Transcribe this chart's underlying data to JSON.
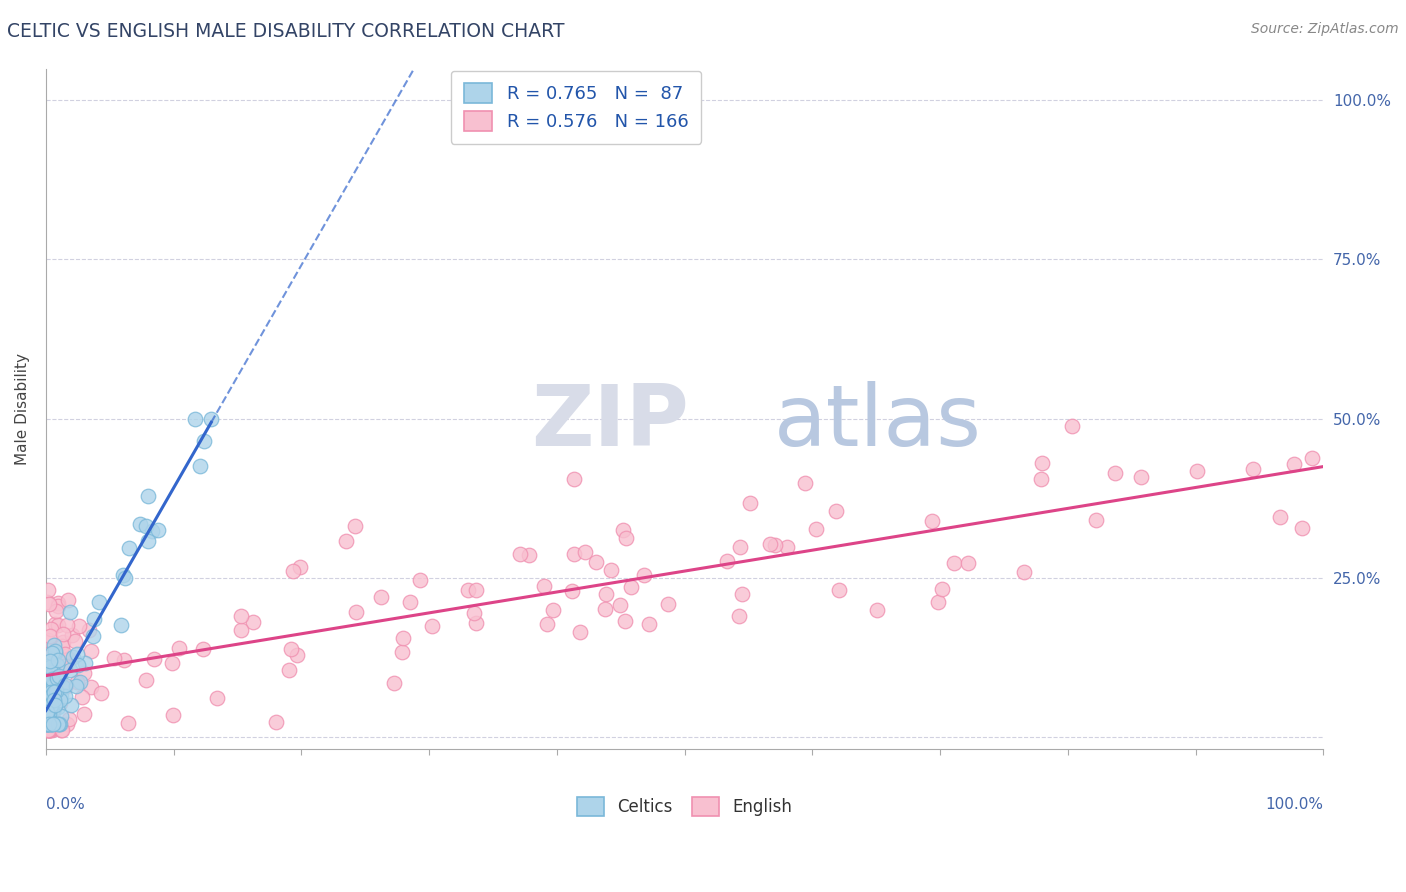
{
  "title": "CELTIC VS ENGLISH MALE DISABILITY CORRELATION CHART",
  "source": "Source: ZipAtlas.com",
  "ylabel": "Male Disability",
  "celtics_R": 0.765,
  "celtics_N": 87,
  "english_R": 0.576,
  "english_N": 166,
  "celtics_color": "#7ab8d9",
  "celtics_face": "#aed4ea",
  "english_color": "#f090b0",
  "english_face": "#f8c0d0",
  "regression_celtics_color": "#3366cc",
  "regression_english_color": "#dd4488",
  "background_color": "#ffffff",
  "grid_color": "#ccccdd",
  "watermark_zip": "ZIP",
  "watermark_atlas": "atlas",
  "watermark_color_zip": "#d8dce8",
  "watermark_color_atlas": "#b8c8e0",
  "title_color": "#334466",
  "source_color": "#888888",
  "axis_label_color": "#4466aa",
  "ylabel_color": "#444444"
}
